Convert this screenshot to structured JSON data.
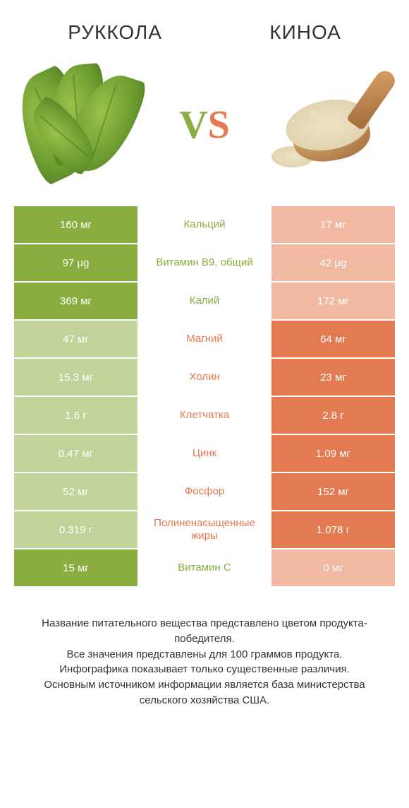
{
  "header": {
    "left_title": "РУККОЛА",
    "right_title": "КИНОА"
  },
  "vs": {
    "v": "V",
    "s": "S"
  },
  "colors": {
    "left": "#8aad3f",
    "left_dim": "#c2d39a",
    "right": "#e47a52",
    "right_dim": "#f2b9a2",
    "mid_left_text": "#8aad3f",
    "mid_right_text": "#e47a52"
  },
  "rows": [
    {
      "left": "160 мг",
      "mid": "Кальций",
      "right": "17 мг",
      "winner": "left"
    },
    {
      "left": "97 µg",
      "mid": "Витамин B9, общий",
      "right": "42 µg",
      "winner": "left"
    },
    {
      "left": "369 мг",
      "mid": "Калий",
      "right": "172 мг",
      "winner": "left"
    },
    {
      "left": "47 мг",
      "mid": "Магний",
      "right": "64 мг",
      "winner": "right"
    },
    {
      "left": "15.3 мг",
      "mid": "Холин",
      "right": "23 мг",
      "winner": "right"
    },
    {
      "left": "1.6 г",
      "mid": "Клетчатка",
      "right": "2.8 г",
      "winner": "right"
    },
    {
      "left": "0.47 мг",
      "mid": "Цинк",
      "right": "1.09 мг",
      "winner": "right"
    },
    {
      "left": "52 мг",
      "mid": "Фосфор",
      "right": "152 мг",
      "winner": "right"
    },
    {
      "left": "0.319 г",
      "mid": "Полиненасыщенные жиры",
      "right": "1.078 г",
      "winner": "right"
    },
    {
      "left": "15 мг",
      "mid": "Витамин C",
      "right": "0 мг",
      "winner": "left"
    }
  ],
  "footer": {
    "line1": "Название питательного вещества представлено цветом продукта-победителя.",
    "line2": "Все значения представлены для 100 граммов продукта.",
    "line3": "Инфографика показывает только существенные различия.",
    "line4": "Основным источником информации является база министерства сельского хозяйства США."
  }
}
